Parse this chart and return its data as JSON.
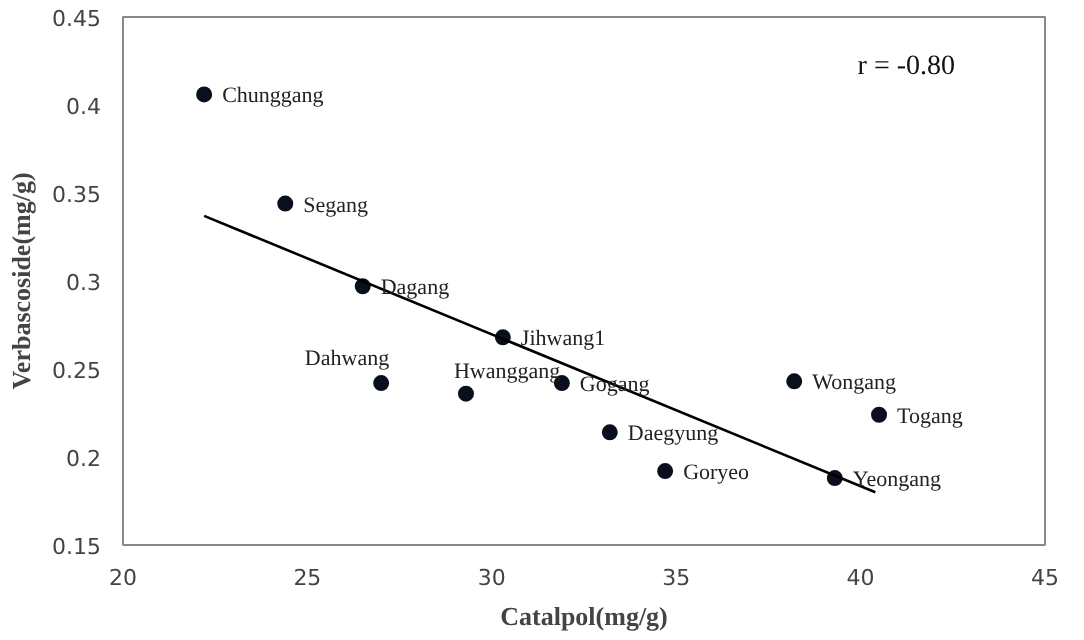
{
  "chart_data": {
    "type": "scatter",
    "xlabel": "Catalpol(mg/g)",
    "ylabel": "Verbascoside(mg/g)",
    "xlim": [
      20,
      45
    ],
    "xticks": [
      20,
      25,
      30,
      35,
      40,
      45
    ],
    "ylim": [
      0.15,
      0.45
    ],
    "yticks": [
      0.15,
      0.2,
      0.25,
      0.3,
      0.35,
      0.4,
      0.45
    ],
    "grid": false,
    "marker": "circle",
    "series": [
      {
        "color": "#0a0f1e",
        "x": [
          22.2,
          24.4,
          26.5,
          27.0,
          29.3,
          30.3,
          31.9,
          33.2,
          34.7,
          38.2,
          40.5,
          39.3
        ],
        "values": [
          0.406,
          0.344,
          0.297,
          0.242,
          0.236,
          0.268,
          0.242,
          0.214,
          0.192,
          0.243,
          0.224,
          0.188
        ]
      },
      {
        "type": "line",
        "marker": "none",
        "color": "#000000",
        "x": [
          22.2,
          40.4
        ],
        "values": [
          0.337,
          0.18
        ]
      }
    ],
    "annotations": [
      {
        "text": "Chunggang",
        "x": 22.2,
        "y": 0.406
      },
      {
        "text": "Segang",
        "x": 24.4,
        "y": 0.344
      },
      {
        "text": "Dagang",
        "x": 26.5,
        "y": 0.297
      },
      {
        "text": "Dahwang",
        "x": 27.0,
        "y": 0.242
      },
      {
        "text": "Hwanggang",
        "x": 29.3,
        "y": 0.236
      },
      {
        "text": "Jihwang1",
        "x": 30.3,
        "y": 0.268
      },
      {
        "text": "Gogang",
        "x": 31.9,
        "y": 0.242
      },
      {
        "text": "Daegyung",
        "x": 33.2,
        "y": 0.214
      },
      {
        "text": "Goryeo",
        "x": 34.7,
        "y": 0.192
      },
      {
        "text": "Wongang",
        "x": 38.2,
        "y": 0.243
      },
      {
        "text": "Togang",
        "x": 40.5,
        "y": 0.224
      },
      {
        "text": "Yeongang",
        "x": 39.3,
        "y": 0.188
      },
      "r = -0.80"
    ]
  }
}
